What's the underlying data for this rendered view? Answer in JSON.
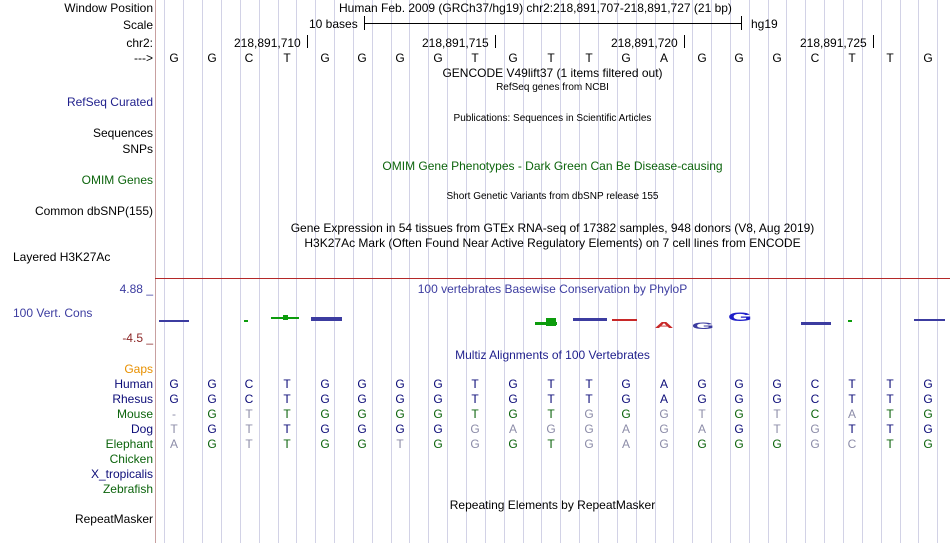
{
  "header": {
    "window_position_label": "Window Position",
    "window_position_text": "Human Feb. 2009 (GRCh37/hg19)   chr2:218,891,707-218,891,727 (21 bp)",
    "scale_label": "Scale",
    "scale_text": "10 bases",
    "assembly": "hg19",
    "chrom_label": "chr2:",
    "arrow_label": "--->",
    "coords": [
      "218,891,710",
      "218,891,715",
      "218,891,720",
      "218,891,725"
    ]
  },
  "sequence": [
    "G",
    "G",
    "C",
    "T",
    "G",
    "G",
    "G",
    "G",
    "T",
    "G",
    "T",
    "T",
    "G",
    "A",
    "G",
    "G",
    "G",
    "C",
    "T",
    "T",
    "G"
  ],
  "tracks": {
    "gencode_title": "GENCODE V49lift37 (1 items filtered out)",
    "refseq_subtitle": "RefSeq genes from NCBI",
    "refseq_label": "RefSeq Curated",
    "sequences_label": "Sequences",
    "publications_title": "Publications: Sequences in Scientific Articles",
    "snps_label": "SNPs",
    "omim_title": "OMIM Gene Phenotypes - Dark Green Can Be Disease-causing",
    "omim_label": "OMIM Genes",
    "dbsnp_title": "Short Genetic Variants from dbSNP release 155",
    "dbsnp_label": "Common dbSNP(155)",
    "gtex_title": "Gene Expression in 54 tissues from GTEx RNA-seq of 17382 samples, 948 donors (V8, Aug 2019)",
    "h3k27ac_title": "H3K27Ac Mark (Often Found Near Active Regulatory Elements) on 7 cell lines from ENCODE",
    "h3k27ac_label": "Layered H3K27Ac",
    "phylop_max": "4.88 _",
    "phylop_title": "100 vertebrates Basewise Conservation by PhyloP",
    "phylop_label": "100 Vert. Cons",
    "phylop_min": "-4.5 _",
    "multiz_title": "Multiz Alignments of 100 Vertebrates",
    "gaps_label": "Gaps",
    "repeat_title": "Repeating Elements by RepeatMasker",
    "repeat_label": "RepeatMasker"
  },
  "alignment": [
    {
      "species": "Human",
      "bases": [
        "G",
        "G",
        "C",
        "T",
        "G",
        "G",
        "G",
        "G",
        "T",
        "G",
        "T",
        "T",
        "G",
        "A",
        "G",
        "G",
        "G",
        "C",
        "T",
        "T",
        "G"
      ],
      "match": [
        1,
        1,
        1,
        1,
        1,
        1,
        1,
        1,
        1,
        1,
        1,
        1,
        1,
        1,
        1,
        1,
        1,
        1,
        1,
        1,
        1
      ]
    },
    {
      "species": "Rhesus",
      "bases": [
        "G",
        "G",
        "C",
        "T",
        "G",
        "G",
        "G",
        "G",
        "T",
        "G",
        "T",
        "T",
        "G",
        "A",
        "G",
        "G",
        "G",
        "C",
        "T",
        "T",
        "G"
      ],
      "match": [
        1,
        1,
        1,
        1,
        1,
        1,
        1,
        1,
        1,
        1,
        1,
        1,
        1,
        1,
        1,
        1,
        1,
        1,
        1,
        1,
        1
      ]
    },
    {
      "species": "Mouse",
      "bases": [
        "-",
        "G",
        "T",
        "T",
        "G",
        "G",
        "G",
        "G",
        "T",
        "G",
        "T",
        "G",
        "G",
        "G",
        "T",
        "G",
        "T",
        "C",
        "A",
        "T",
        "G"
      ],
      "match": [
        0,
        1,
        0,
        1,
        1,
        1,
        1,
        1,
        1,
        1,
        1,
        0,
        1,
        0,
        0,
        1,
        0,
        1,
        0,
        1,
        1
      ]
    },
    {
      "species": "Dog",
      "bases": [
        "T",
        "G",
        "T",
        "T",
        "G",
        "G",
        "G",
        "G",
        "G",
        "A",
        "G",
        "G",
        "A",
        "G",
        "A",
        "G",
        "T",
        "G",
        "T",
        "T",
        "G"
      ],
      "match": [
        0,
        1,
        0,
        1,
        1,
        1,
        1,
        1,
        0,
        0,
        0,
        0,
        0,
        0,
        0,
        1,
        0,
        0,
        1,
        1,
        1
      ]
    },
    {
      "species": "Elephant",
      "bases": [
        "A",
        "G",
        "T",
        "T",
        "G",
        "G",
        "T",
        "G",
        "G",
        "G",
        "T",
        "G",
        "A",
        "G",
        "G",
        "G",
        "G",
        "G",
        "C",
        "T",
        "G"
      ],
      "match": [
        0,
        1,
        0,
        1,
        1,
        1,
        0,
        1,
        0,
        1,
        1,
        0,
        0,
        0,
        1,
        1,
        1,
        0,
        0,
        1,
        1
      ]
    },
    {
      "species": "Chicken",
      "bases": [],
      "match": []
    },
    {
      "species": "X_tropicalis",
      "bases": [],
      "match": []
    },
    {
      "species": "Zebrafish",
      "bases": [],
      "match": []
    }
  ],
  "colors": {
    "track_title": "#000000",
    "navy": "#0c0c78",
    "blue": "#1f1f8c",
    "green": "#0c640c",
    "phylop_blue": "#3c3ca0",
    "phylop_red": "#8c2828",
    "gaps_orange": "#e89000",
    "divider": "#b42828",
    "mismatch": "#8c8ca8",
    "grid": "#d2d2e6"
  }
}
